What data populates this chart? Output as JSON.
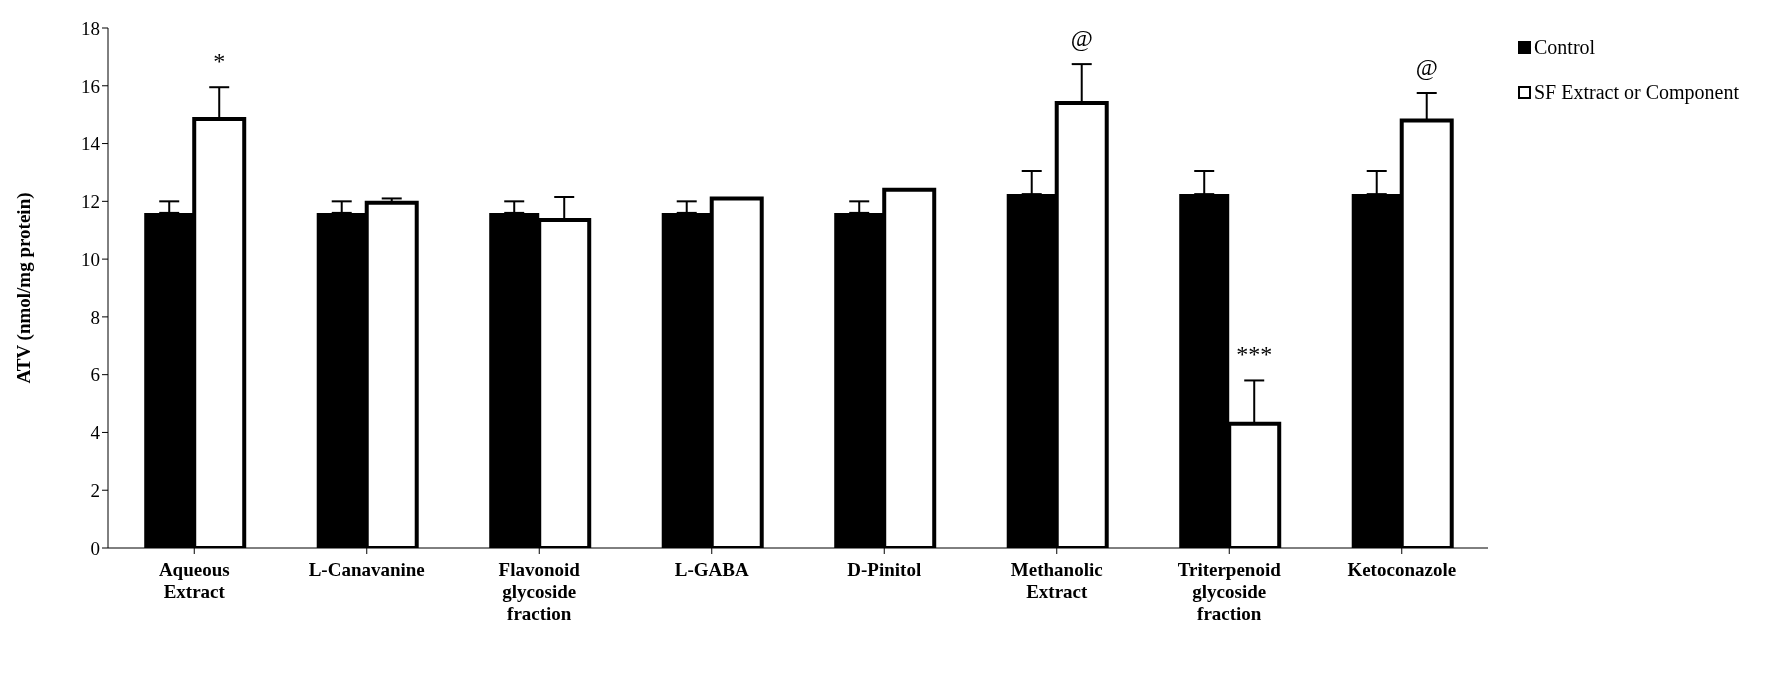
{
  "chart_data": {
    "type": "bar",
    "ylabel": "ATV (nmol/mg protein)",
    "categories": [
      "Aqueous Extract",
      "L-Canavanine",
      "Flavonoid glycoside fraction",
      "L-GABA",
      "D-Pinitol",
      "Methanolic Extract",
      "Triterpenoid glycoside fraction",
      "Ketoconazole"
    ],
    "series": [
      {
        "name": "Control",
        "color": "#000000",
        "values": [
          11.6,
          11.6,
          11.6,
          11.6,
          11.6,
          12.25,
          12.25,
          12.25
        ],
        "errors": [
          [
            11.6,
            12.0
          ],
          [
            11.6,
            12.0
          ],
          [
            11.6,
            12.0
          ],
          [
            11.6,
            12.0
          ],
          [
            11.6,
            12.0
          ],
          [
            12.25,
            13.05
          ],
          [
            12.25,
            13.05
          ],
          [
            12.25,
            13.05
          ]
        ]
      },
      {
        "name": "SF Extract or Component",
        "color": "#ffffff",
        "values": [
          14.85,
          11.95,
          11.35,
          12.1,
          12.4,
          15.4,
          4.3,
          14.8
        ],
        "errors": [
          [
            14.85,
            15.95
          ],
          [
            11.95,
            12.1
          ],
          [
            11.35,
            12.15
          ],
          null,
          null,
          [
            15.4,
            16.75
          ],
          [
            4.3,
            5.8
          ],
          [
            14.8,
            15.75
          ]
        ]
      }
    ],
    "ylim": [
      0,
      18
    ],
    "yticks": [
      0,
      2,
      4,
      6,
      8,
      10,
      12,
      14,
      16,
      18
    ],
    "grid": false,
    "legend": "top right",
    "annotations": [
      {
        "text": "*",
        "x": "Aqueous Extract",
        "y": 14.85
      },
      {
        "text": "@",
        "x": "Methanolic Extract",
        "y": 15.4
      },
      {
        "text": "***",
        "x": "Triterpenoid glycoside fraction",
        "y": 4.3
      },
      {
        "text": "@",
        "x": "Ketoconazole",
        "y": 14.8
      }
    ]
  }
}
